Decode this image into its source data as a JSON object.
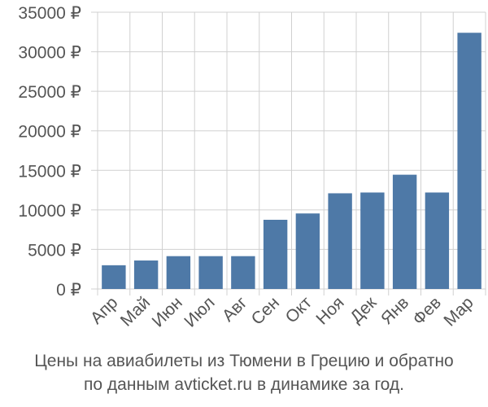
{
  "chart_data": {
    "type": "bar",
    "categories": [
      "Апр",
      "Май",
      "Июн",
      "Июл",
      "Авг",
      "Сен",
      "Окт",
      "Ноя",
      "Дек",
      "Янв",
      "Фев",
      "Мар"
    ],
    "values": [
      3000,
      3600,
      4150,
      4150,
      4150,
      8750,
      9550,
      12100,
      12200,
      14450,
      12200,
      32400
    ],
    "y_ticks": [
      "0 ₽",
      "5000 ₽",
      "10000 ₽",
      "15000 ₽",
      "20000 ₽",
      "25000 ₽",
      "30000 ₽",
      "35000 ₽"
    ],
    "ylim": [
      0,
      35000
    ],
    "grid": true,
    "bar_color": "#4e79a7",
    "title": "",
    "xlabel": "",
    "ylabel": ""
  },
  "caption": {
    "line1": "Цены на авиабилеты из Тюмени в Грецию и обратно",
    "line2": "по данным avticket.ru в динамике за год."
  }
}
